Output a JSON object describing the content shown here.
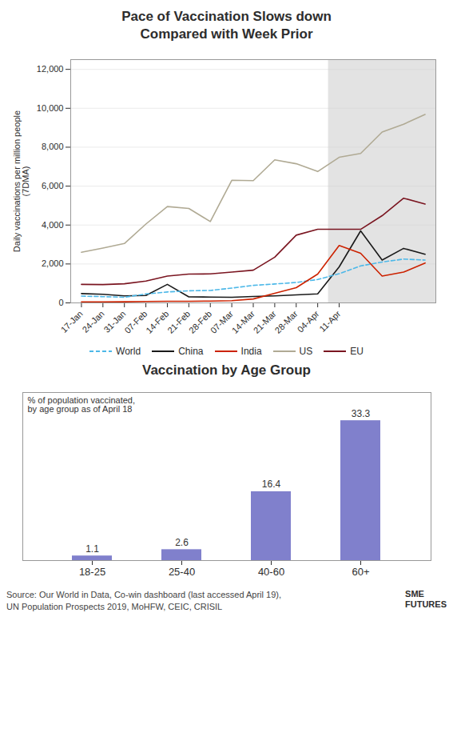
{
  "chart_data": [
    {
      "type": "line",
      "title": "Pace of Vaccination Slows down\nCompared with Week Prior",
      "ylabel": "Daily vaccinations per million people\n(7DMA)",
      "categories": [
        "17-Jan",
        "24-Jan",
        "31-Jan",
        "07-Feb",
        "14-Feb",
        "21-Feb",
        "28-Feb",
        "07-Mar",
        "14-Mar",
        "21-Mar",
        "28-Mar",
        "04-Apr",
        "11-Apr",
        null,
        null,
        null,
        null
      ],
      "series": [
        {
          "name": "World",
          "color": "#4db8e8",
          "line_style": "dashed",
          "values": [
            350,
            320,
            290,
            460,
            560,
            620,
            640,
            760,
            900,
            970,
            1050,
            1200,
            1500,
            1900,
            2100,
            2250,
            2200
          ]
        },
        {
          "name": "China",
          "color": "#1a1a1a",
          "line_style": "solid",
          "values": [
            480,
            440,
            360,
            380,
            950,
            310,
            300,
            290,
            330,
            360,
            410,
            460,
            1850,
            3700,
            2200,
            2800,
            2500
          ]
        },
        {
          "name": "India",
          "color": "#cc2200",
          "line_style": "solid",
          "values": [
            50,
            50,
            55,
            75,
            80,
            80,
            95,
            115,
            200,
            490,
            780,
            1480,
            2950,
            2550,
            1380,
            1580,
            2050
          ]
        },
        {
          "name": "US",
          "color": "#b0aa94",
          "line_style": "solid",
          "values": [
            2600,
            2820,
            3050,
            4050,
            4950,
            4850,
            4180,
            6300,
            6280,
            7350,
            7150,
            6750,
            7480,
            7680,
            8780,
            9180,
            9680
          ]
        },
        {
          "name": "EU",
          "color": "#7a1520",
          "line_style": "solid",
          "values": [
            950,
            940,
            980,
            1120,
            1380,
            1480,
            1490,
            1580,
            1680,
            2350,
            3480,
            3780,
            3780,
            3780,
            4480,
            5380,
            5080
          ]
        }
      ],
      "shaded_range": [
        11.5,
        16.5
      ],
      "ylim": [
        0,
        12500
      ],
      "yticks": [
        0,
        {
          "value": 2000,
          "label": "2,000"
        },
        {
          "value": 4000,
          "label": "4,000"
        },
        {
          "value": 6000,
          "label": "6,000"
        },
        {
          "value": 8000,
          "label": "8,000"
        },
        {
          "value": 10000,
          "label": "10,000"
        },
        {
          "value": 12000,
          "label": "12,000"
        }
      ],
      "grid": true,
      "legend": "bottom"
    },
    {
      "type": "bar",
      "title": "Vaccination by Age Group",
      "categories": [
        "18-25",
        "25-40",
        "40-60",
        "60+"
      ],
      "values": [
        1.1,
        2.6,
        16.4,
        33.3
      ],
      "color": "#8080cc",
      "ylim": [
        0,
        40
      ],
      "data_labels": true,
      "tick_labels": "x",
      "annotations": [
        "% of population vaccinated,\nby age group as of April 18"
      ],
      "caption": "Source: Our World in Data, Co-win dashboard (last accessed April 19),\nUN Population Prospects 2019, MoHFW, CEIC, CRISIL",
      "credit": "SME\nFUTURES"
    }
  ]
}
